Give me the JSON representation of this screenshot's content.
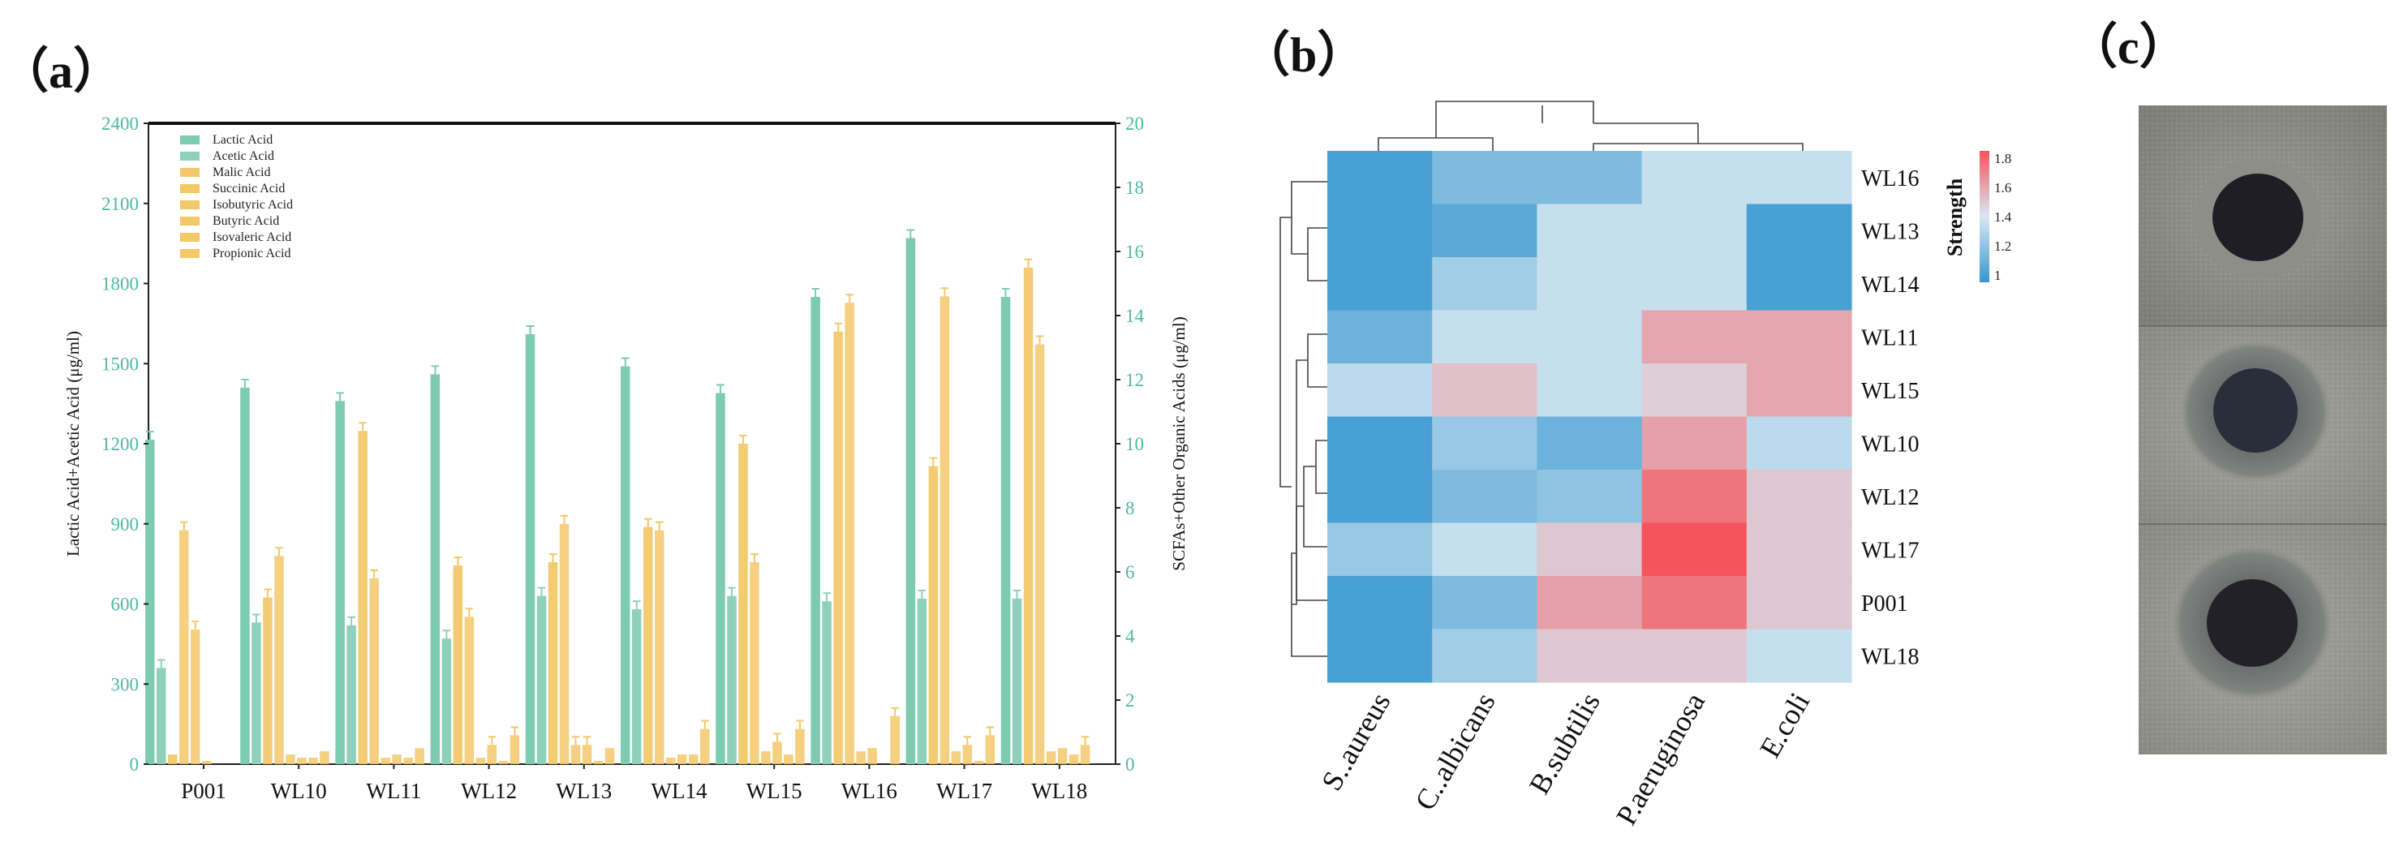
{
  "panel_labels": {
    "a": "（a）",
    "b": "（b）",
    "c": "（c）"
  },
  "colors": {
    "lactic": "#7DCBB0",
    "acetic": "#8FD0BB",
    "organic": "#F2C86A",
    "axis_left": "#4FB8A2",
    "axis_right": "#4FB8A2",
    "heat_low": "#3797CF",
    "heat_mid": "#D8E8F2",
    "heat_high": "#F5545C"
  },
  "chart_data": [
    {
      "id": "a",
      "type": "bar",
      "title": "",
      "xlabel": "",
      "ylabel": "Lactic Acid+Acetic Acid (μg/ml)",
      "ylabel_right": "SCFAs+Other Organic Acids (μg/ml)",
      "ylim": [
        0,
        2400
      ],
      "ylim_right": [
        0,
        20
      ],
      "yticks": [
        0,
        300,
        600,
        900,
        1200,
        1500,
        1800,
        2100,
        2400
      ],
      "yticks_right": [
        0,
        2,
        4,
        6,
        8,
        10,
        12,
        14,
        16,
        18,
        20
      ],
      "legend_position": "top-left",
      "categories": [
        "P001",
        "WL10",
        "WL11",
        "WL12",
        "WL13",
        "WL14",
        "WL15",
        "WL16",
        "WL17",
        "WL18"
      ],
      "series": [
        {
          "name": "Lactic Acid",
          "axis": "left",
          "values": [
            1215,
            1410,
            1360,
            1460,
            1610,
            1490,
            1390,
            1750,
            1970,
            1750
          ]
        },
        {
          "name": "Acetic Acid",
          "axis": "left",
          "values": [
            360,
            530,
            520,
            470,
            630,
            580,
            630,
            610,
            620,
            620
          ]
        },
        {
          "name": "Malic Acid",
          "axis": "right",
          "values": [
            0.3,
            5.2,
            10.4,
            6.2,
            6.3,
            7.4,
            10.0,
            13.5,
            9.3,
            15.5
          ]
        },
        {
          "name": "Succinic Acid",
          "axis": "right",
          "values": [
            7.3,
            6.5,
            5.8,
            4.6,
            7.5,
            7.3,
            6.3,
            14.4,
            14.6,
            13.1
          ]
        },
        {
          "name": "Isobutyric Acid",
          "axis": "right",
          "values": [
            4.2,
            0.3,
            0.2,
            0.2,
            0.6,
            0.2,
            0.4,
            0.4,
            0.4,
            0.4
          ]
        },
        {
          "name": "Butyric Acid",
          "axis": "right",
          "values": [
            0.1,
            0.2,
            0.3,
            0.6,
            0.6,
            0.3,
            0.7,
            0.5,
            0.6,
            0.5
          ]
        },
        {
          "name": "Isovaleric Acid",
          "axis": "right",
          "values": [
            0.0,
            0.2,
            0.2,
            0.1,
            0.1,
            0.3,
            0.3,
            0.0,
            0.1,
            0.3
          ]
        },
        {
          "name": "Propionic Acid",
          "axis": "right",
          "values": [
            0.0,
            0.4,
            0.5,
            0.9,
            0.5,
            1.1,
            1.1,
            1.5,
            0.9,
            0.6
          ]
        }
      ],
      "errors_left": [
        [
          15,
          10,
          15,
          10,
          10,
          10,
          10,
          20,
          15,
          10
        ],
        [
          10,
          8,
          8,
          8,
          10,
          8,
          10,
          10,
          10,
          8
        ]
      ]
    },
    {
      "id": "b",
      "type": "heatmap",
      "title": "",
      "colorbar_label": "Strength",
      "colorbar_range": [
        0.95,
        1.85
      ],
      "colorbar_ticks": [
        "1",
        "1.2",
        "1.4",
        "1.6",
        "1.8"
      ],
      "columns": [
        "S..aureus",
        "C..albicans",
        "B.subtilis",
        "P.aeruginosa",
        "E.coli"
      ],
      "rows": [
        "WL16",
        "WL13",
        "WL14",
        "WL11",
        "WL15",
        "WL10",
        "WL12",
        "WL17",
        "P001",
        "WL18"
      ],
      "values": [
        [
          1.0,
          1.15,
          1.15,
          1.35,
          1.35
        ],
        [
          1.0,
          1.05,
          1.35,
          1.35,
          1.0
        ],
        [
          1.0,
          1.25,
          1.35,
          1.35,
          1.0
        ],
        [
          1.1,
          1.35,
          1.35,
          1.6,
          1.6
        ],
        [
          1.32,
          1.52,
          1.35,
          1.48,
          1.6
        ],
        [
          1.0,
          1.22,
          1.1,
          1.62,
          1.32
        ],
        [
          1.0,
          1.15,
          1.2,
          1.75,
          1.5
        ],
        [
          1.22,
          1.35,
          1.5,
          1.85,
          1.5
        ],
        [
          1.0,
          1.15,
          1.62,
          1.75,
          1.5
        ],
        [
          1.0,
          1.25,
          1.5,
          1.5,
          1.35
        ]
      ]
    }
  ]
}
